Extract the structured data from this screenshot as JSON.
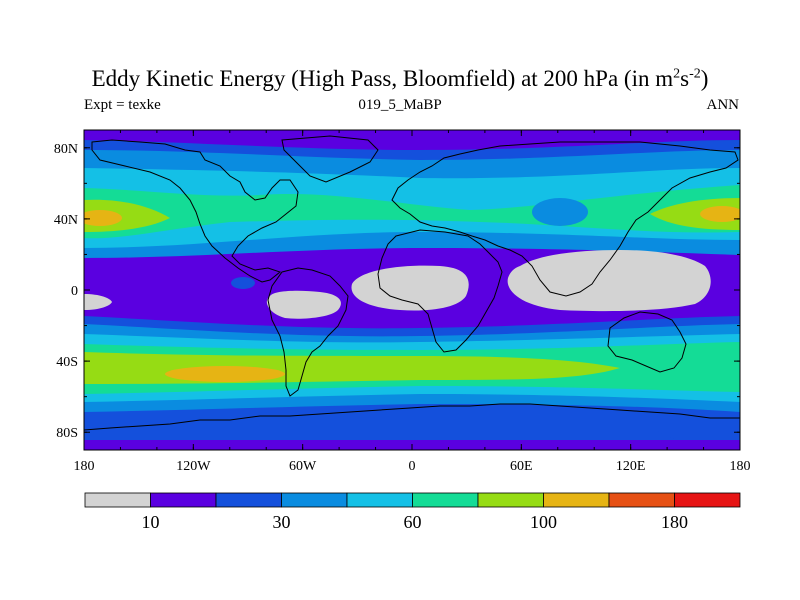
{
  "title": {
    "text": "Eddy Kinetic Energy (High Pass, Bloomfield) at 200 hPa (in m",
    "unit_exp1": "2",
    "unit_mid": "s",
    "unit_exp2": "-2",
    "unit_close": ")"
  },
  "subtitle": {
    "left": "Expt = texke",
    "center": "019_5_MaBP",
    "right": "ANN"
  },
  "map": {
    "lat_labels": [
      "80N",
      "40N",
      "0",
      "40S",
      "80S"
    ],
    "lat_values": [
      80,
      40,
      0,
      -40,
      -80
    ],
    "lon_labels": [
      "180",
      "120W",
      "60W",
      "0",
      "60E",
      "120E",
      "180"
    ],
    "lon_values": [
      -180,
      -120,
      -60,
      0,
      60,
      120,
      180
    ],
    "lat_range": [
      -90,
      90
    ],
    "lon_range": [
      -180,
      180
    ]
  },
  "colorbar": {
    "colors": [
      "#d3d3d3",
      "#5a00e0",
      "#1450dc",
      "#0a8ce0",
      "#14c0e6",
      "#14dc96",
      "#96dc14",
      "#e6b414",
      "#e65014",
      "#e61414"
    ],
    "labels": [
      "10",
      "30",
      "60",
      "100",
      "180"
    ]
  }
}
